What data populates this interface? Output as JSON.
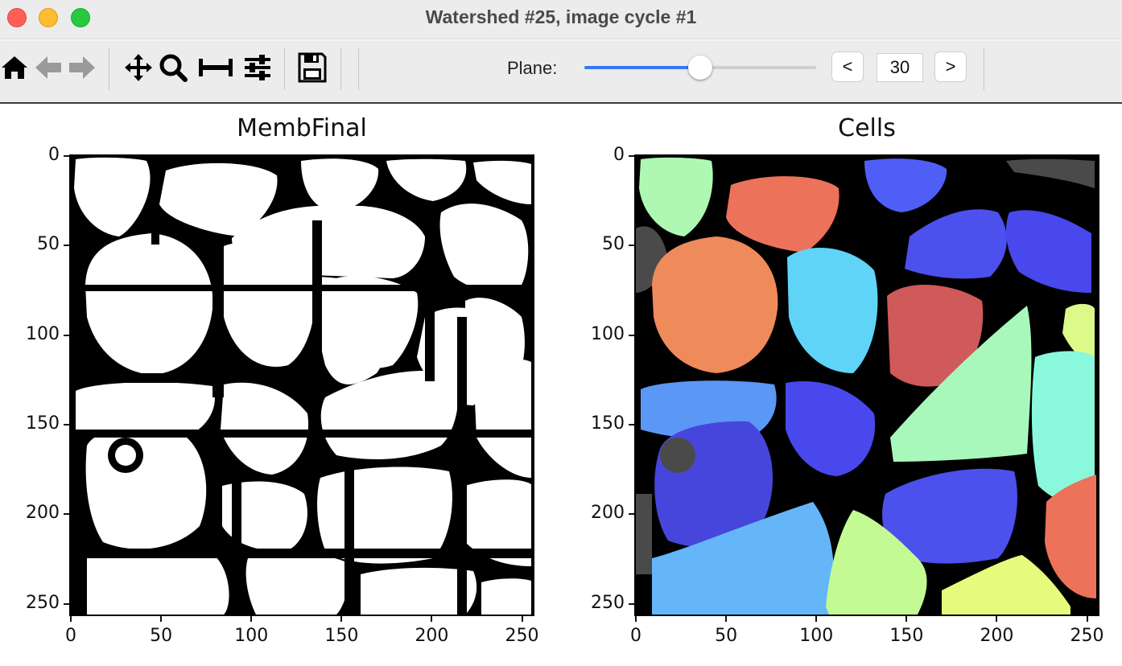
{
  "window": {
    "title": "Watershed #25, image cycle #1",
    "controls": [
      "close",
      "minimize",
      "maximize"
    ]
  },
  "toolbar": {
    "tools": [
      {
        "icon": "home-icon"
      },
      {
        "icon": "back-arrow-icon"
      },
      {
        "icon": "forward-arrow-icon"
      },
      {
        "icon": "pan-icon"
      },
      {
        "icon": "zoom-icon"
      },
      {
        "icon": "subplots-icon"
      },
      {
        "icon": "configure-icon"
      },
      {
        "icon": "save-icon"
      }
    ],
    "plane_label": "Plane:",
    "plane_slider_fraction": 0.5,
    "prev_label": "<",
    "next_label": ">",
    "plane_value": "30"
  },
  "panels": [
    {
      "title": "MembFinal",
      "kind": "binary membrane mask"
    },
    {
      "title": "Cells",
      "kind": "watershed label image"
    }
  ],
  "axes": {
    "x_ticks": [
      "0",
      "50",
      "100",
      "150",
      "200",
      "250"
    ],
    "y_ticks": [
      "0",
      "50",
      "100",
      "150",
      "200",
      "250"
    ],
    "range": [
      0,
      255
    ]
  },
  "colors": {
    "membrane": "#000000",
    "cell_interior": "#ffffff",
    "slider_accent": "#3478f6",
    "cell_labels": [
      "#aef8b4",
      "#ec7259",
      "#4f5ef6",
      "#4a4a4a",
      "#4c50ec",
      "#ef8a5b",
      "#5fd4f7",
      "#d0595a",
      "#dcfa8a",
      "#5b97f4",
      "#4848ec",
      "#a8f8bc",
      "#8af8dc",
      "#4646dc",
      "#64b6f8",
      "#c4fa94",
      "#e6fa7c"
    ]
  }
}
